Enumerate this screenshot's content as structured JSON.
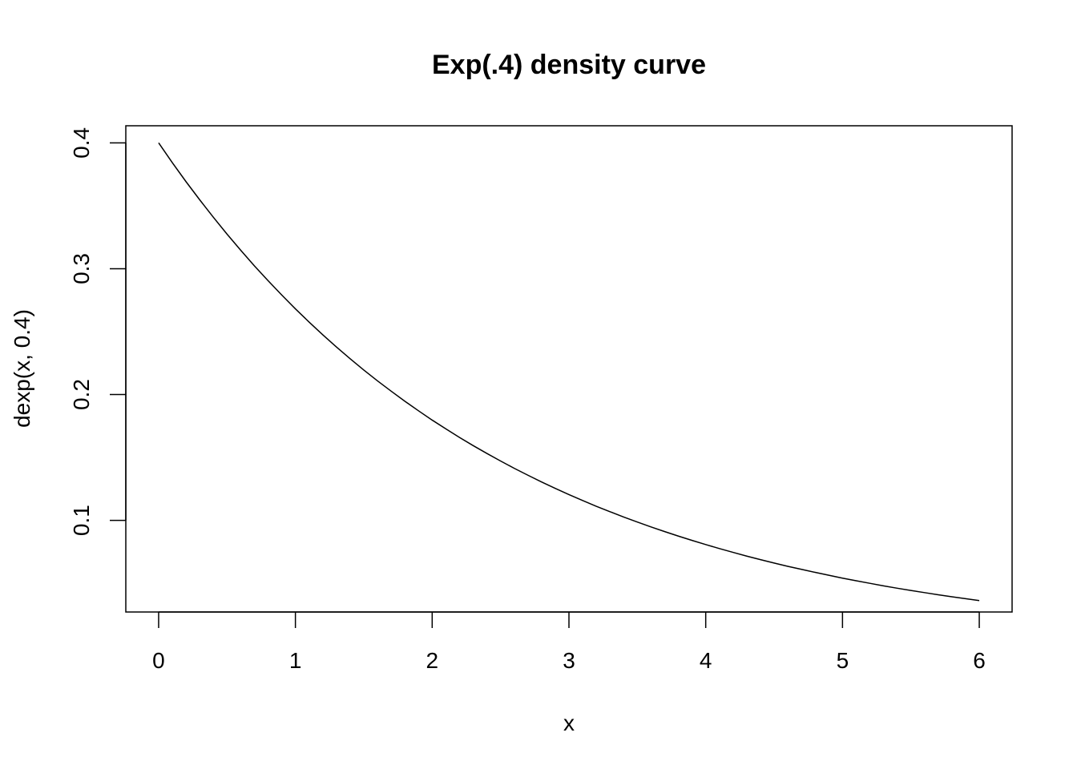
{
  "chart_data": {
    "type": "line",
    "title": "Exp(.4) density curve",
    "xlabel": "x",
    "ylabel": "dexp(x, 0.4)",
    "xlim": [
      -0.24,
      6.24
    ],
    "ylim": [
      0.0272,
      0.4136
    ],
    "xticks": [
      0,
      1,
      2,
      3,
      4,
      5,
      6
    ],
    "xtick_labels": [
      "0",
      "1",
      "2",
      "3",
      "4",
      "5",
      "6"
    ],
    "yticks": [
      0.1,
      0.2,
      0.3,
      0.4
    ],
    "ytick_labels": [
      "0.1",
      "0.2",
      "0.3",
      "0.4"
    ],
    "grid": false,
    "legend": false,
    "line_color": "#000000",
    "series": [
      {
        "x": [
          0,
          0.1,
          0.2,
          0.3,
          0.4,
          0.5,
          0.6,
          0.7,
          0.8,
          0.9,
          1.0,
          1.1,
          1.2,
          1.3,
          1.4,
          1.5,
          1.6,
          1.7,
          1.8,
          1.9,
          2.0,
          2.1,
          2.2,
          2.3,
          2.4,
          2.5,
          2.6,
          2.7,
          2.8,
          2.9,
          3.0,
          3.1,
          3.2,
          3.3,
          3.4,
          3.5,
          3.6,
          3.7,
          3.8,
          3.9,
          4.0,
          4.1,
          4.2,
          4.3,
          4.4,
          4.5,
          4.6,
          4.7,
          4.8,
          4.9,
          5.0,
          5.1,
          5.2,
          5.3,
          5.4,
          5.5,
          5.6,
          5.7,
          5.8,
          5.9,
          6.0
        ],
        "y": [
          0.4,
          0.3843,
          0.3692,
          0.3548,
          0.3409,
          0.3275,
          0.3147,
          0.3023,
          0.2905,
          0.2791,
          0.2681,
          0.2576,
          0.2475,
          0.2378,
          0.2285,
          0.2195,
          0.2109,
          0.2027,
          0.1947,
          0.1871,
          0.1797,
          0.1727,
          0.1659,
          0.1594,
          0.1532,
          0.1472,
          0.1414,
          0.1359,
          0.1305,
          0.1254,
          0.1205,
          0.1158,
          0.1112,
          0.1069,
          0.1027,
          0.0987,
          0.0948,
          0.0911,
          0.0875,
          0.0841,
          0.0808,
          0.0776,
          0.0746,
          0.0716,
          0.0688,
          0.0661,
          0.0635,
          0.0611,
          0.0587,
          0.0564,
          0.0541,
          0.052,
          0.05,
          0.048,
          0.0461,
          0.0443,
          0.0426,
          0.0409,
          0.0393,
          0.0378,
          0.0363
        ]
      }
    ]
  }
}
